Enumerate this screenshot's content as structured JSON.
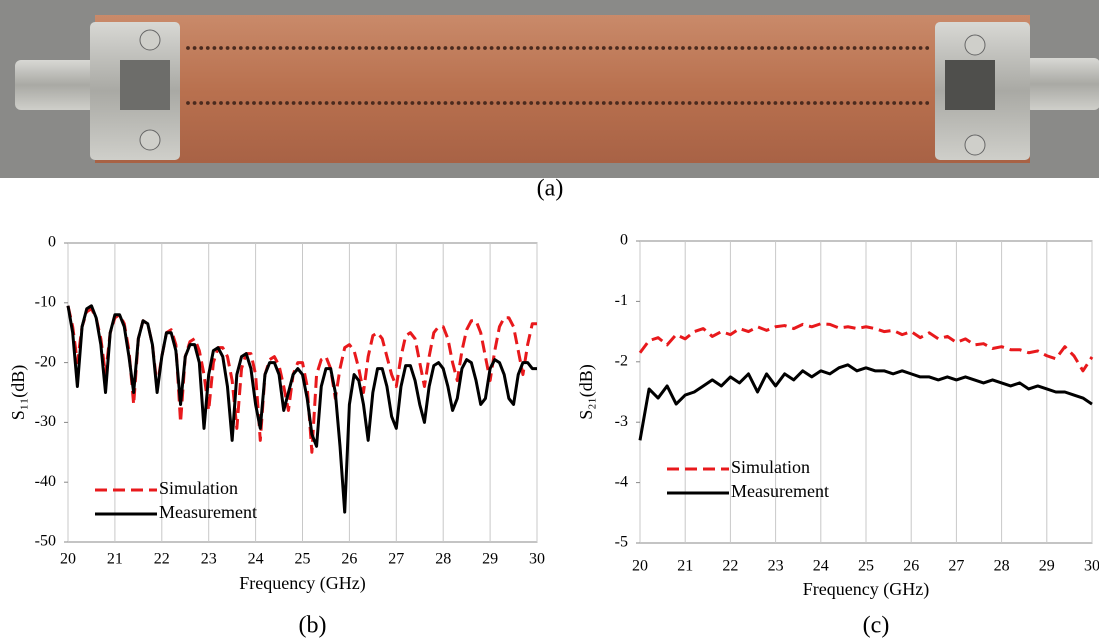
{
  "photo_caption": "(a)",
  "chart_data": [
    {
      "type": "line",
      "caption": "(b)",
      "x_label": "Frequency (GHz)",
      "y_label": "S₁₁(dB)",
      "xlim": [
        20,
        30
      ],
      "xticks": [
        20,
        21,
        22,
        23,
        24,
        25,
        26,
        27,
        28,
        29,
        30
      ],
      "ylim": [
        -50,
        0
      ],
      "yticks": [
        0,
        -10,
        -20,
        -30,
        -40,
        -50
      ],
      "grid": "x",
      "legend": "lower left",
      "x": [
        20.0,
        20.1,
        20.2,
        20.3,
        20.4,
        20.5,
        20.6,
        20.7,
        20.8,
        20.9,
        21.0,
        21.1,
        21.2,
        21.3,
        21.4,
        21.5,
        21.6,
        21.7,
        21.8,
        21.9,
        22.0,
        22.1,
        22.2,
        22.3,
        22.4,
        22.5,
        22.6,
        22.7,
        22.8,
        22.9,
        23.0,
        23.1,
        23.2,
        23.3,
        23.4,
        23.5,
        23.6,
        23.7,
        23.8,
        23.9,
        24.0,
        24.1,
        24.2,
        24.3,
        24.4,
        24.5,
        24.6,
        24.7,
        24.8,
        24.9,
        25.0,
        25.1,
        25.2,
        25.3,
        25.4,
        25.5,
        25.6,
        25.7,
        25.8,
        25.9,
        26.0,
        26.1,
        26.2,
        26.3,
        26.4,
        26.5,
        26.6,
        26.7,
        26.8,
        26.9,
        27.0,
        27.1,
        27.2,
        27.3,
        27.4,
        27.5,
        27.6,
        27.7,
        27.8,
        27.9,
        28.0,
        28.1,
        28.2,
        28.3,
        28.4,
        28.5,
        28.6,
        28.7,
        28.8,
        28.9,
        29.0,
        29.1,
        29.2,
        29.3,
        29.4,
        29.5,
        29.6,
        29.7,
        29.8,
        29.9,
        30.0
      ],
      "series": [
        {
          "name": "Simulation",
          "color": "#e8191c",
          "dashed": true,
          "values": [
            -10.5,
            -14,
            -20,
            -14,
            -11.5,
            -11,
            -12.5,
            -16,
            -22,
            -15,
            -12.5,
            -12,
            -13.5,
            -18,
            -27,
            -16,
            -13,
            -13.5,
            -17,
            -24,
            -19,
            -15,
            -14.5,
            -17,
            -30,
            -19,
            -16.5,
            -16,
            -18,
            -22,
            -28,
            -20,
            -17.5,
            -17.5,
            -19,
            -23,
            -31,
            -21,
            -18.5,
            -18.5,
            -22,
            -33,
            -22,
            -19.5,
            -19,
            -20.5,
            -24,
            -28,
            -22,
            -20,
            -20,
            -24,
            -35,
            -22,
            -19.5,
            -19,
            -21,
            -26,
            -21,
            -17.5,
            -17,
            -18,
            -21,
            -25,
            -19,
            -15.5,
            -15,
            -16,
            -19,
            -22,
            -24,
            -19,
            -15.5,
            -15,
            -16,
            -20,
            -24,
            -19,
            -15,
            -14,
            -14,
            -16,
            -20,
            -23,
            -18,
            -14.5,
            -13,
            -13,
            -15,
            -19,
            -23,
            -18,
            -14,
            -12.5,
            -12.5,
            -14,
            -18,
            -22,
            -17,
            -13.5,
            -13.5
          ]
        },
        {
          "name": "Measurement",
          "color": "#000000",
          "dashed": false,
          "values": [
            -10.5,
            -15,
            -24,
            -14,
            -11,
            -10.5,
            -12.5,
            -17,
            -25,
            -15,
            -12,
            -12,
            -14,
            -19,
            -25,
            -16,
            -13,
            -13.5,
            -17,
            -25,
            -19,
            -15,
            -15,
            -18,
            -27,
            -19,
            -17,
            -17,
            -20,
            -31,
            -22,
            -18,
            -17.5,
            -19,
            -24,
            -33,
            -22,
            -19,
            -18.5,
            -21,
            -27,
            -31,
            -22,
            -20,
            -20,
            -22,
            -28,
            -25,
            -22,
            -21,
            -22,
            -26,
            -32,
            -34,
            -24,
            -21,
            -21,
            -25,
            -34,
            -45,
            -27,
            -22,
            -23,
            -27,
            -33,
            -25,
            -21,
            -21,
            -24,
            -29,
            -31,
            -24,
            -20.5,
            -20.5,
            -23,
            -27,
            -30,
            -24,
            -20.5,
            -20,
            -21,
            -24,
            -28,
            -26,
            -21,
            -19.5,
            -20,
            -23,
            -27,
            -26,
            -21,
            -19.5,
            -20,
            -22,
            -26,
            -27,
            -22,
            -20,
            -20,
            -21,
            -21
          ]
        }
      ]
    },
    {
      "type": "line",
      "caption": "(c)",
      "x_label": "Frequency (GHz)",
      "y_label": "S₂₁(dB)",
      "xlim": [
        20,
        30
      ],
      "xticks": [
        20,
        21,
        22,
        23,
        24,
        25,
        26,
        27,
        28,
        29,
        30
      ],
      "ylim": [
        -5,
        0
      ],
      "yticks": [
        0,
        -1,
        -2,
        -3,
        -4,
        -5
      ],
      "grid": "x",
      "legend": "center left",
      "x": [
        20.0,
        20.2,
        20.4,
        20.6,
        20.8,
        21.0,
        21.2,
        21.4,
        21.6,
        21.8,
        22.0,
        22.2,
        22.4,
        22.6,
        22.8,
        23.0,
        23.2,
        23.4,
        23.6,
        23.8,
        24.0,
        24.2,
        24.4,
        24.6,
        24.8,
        25.0,
        25.2,
        25.4,
        25.6,
        25.8,
        26.0,
        26.2,
        26.4,
        26.6,
        26.8,
        27.0,
        27.2,
        27.4,
        27.6,
        27.8,
        28.0,
        28.2,
        28.4,
        28.6,
        28.8,
        29.0,
        29.2,
        29.4,
        29.6,
        29.8,
        30.0
      ],
      "series": [
        {
          "name": "Simulation",
          "color": "#e8191c",
          "dashed": true,
          "values": [
            -1.85,
            -1.65,
            -1.6,
            -1.72,
            -1.55,
            -1.62,
            -1.5,
            -1.45,
            -1.58,
            -1.5,
            -1.55,
            -1.45,
            -1.5,
            -1.42,
            -1.48,
            -1.42,
            -1.4,
            -1.45,
            -1.38,
            -1.42,
            -1.37,
            -1.38,
            -1.44,
            -1.42,
            -1.45,
            -1.42,
            -1.45,
            -1.5,
            -1.48,
            -1.55,
            -1.5,
            -1.6,
            -1.52,
            -1.62,
            -1.58,
            -1.68,
            -1.62,
            -1.72,
            -1.7,
            -1.78,
            -1.75,
            -1.8,
            -1.8,
            -1.85,
            -1.82,
            -1.9,
            -1.95,
            -1.75,
            -1.9,
            -2.15,
            -1.92
          ]
        },
        {
          "name": "Measurement",
          "color": "#000000",
          "dashed": false,
          "values": [
            -3.3,
            -2.45,
            -2.6,
            -2.4,
            -2.7,
            -2.55,
            -2.5,
            -2.4,
            -2.3,
            -2.4,
            -2.25,
            -2.35,
            -2.2,
            -2.5,
            -2.2,
            -2.4,
            -2.2,
            -2.3,
            -2.15,
            -2.25,
            -2.15,
            -2.2,
            -2.1,
            -2.05,
            -2.15,
            -2.1,
            -2.15,
            -2.15,
            -2.2,
            -2.15,
            -2.2,
            -2.25,
            -2.25,
            -2.3,
            -2.25,
            -2.3,
            -2.25,
            -2.3,
            -2.35,
            -2.3,
            -2.35,
            -2.4,
            -2.35,
            -2.45,
            -2.4,
            -2.45,
            -2.5,
            -2.5,
            -2.55,
            -2.6,
            -2.7
          ]
        }
      ]
    }
  ]
}
